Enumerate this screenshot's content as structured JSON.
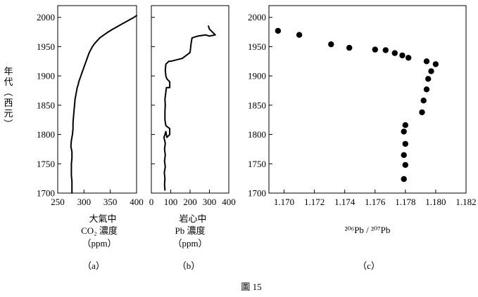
{
  "figure_caption": "圖 15",
  "y_axis_label": "年代（西元）",
  "chart_data": [
    {
      "id": "a",
      "type": "line",
      "panel_label": "（a）",
      "xlabel_lines": [
        "大氣中",
        "CO₂ 濃度",
        "（ppm）"
      ],
      "xlim": [
        250,
        400
      ],
      "xticks": [
        250,
        300,
        350,
        400
      ],
      "ylim": [
        1700,
        2020
      ],
      "yticks": [
        1700,
        1750,
        1800,
        1850,
        1900,
        1950,
        2000
      ],
      "series": [
        {
          "x": [
            277,
            277,
            277,
            276,
            276,
            276,
            277,
            277,
            275,
            276,
            278,
            279,
            279,
            280,
            281,
            282,
            283,
            284,
            285,
            286,
            287,
            289,
            290,
            292,
            294,
            296,
            298,
            300,
            302,
            304,
            306,
            308,
            310,
            313,
            316,
            320,
            325,
            330,
            338,
            346,
            355,
            365,
            375,
            385,
            395,
            400
          ],
          "y": [
            1700,
            1710,
            1720,
            1730,
            1740,
            1750,
            1760,
            1770,
            1780,
            1790,
            1800,
            1810,
            1820,
            1830,
            1840,
            1850,
            1860,
            1865,
            1870,
            1875,
            1880,
            1885,
            1890,
            1895,
            1900,
            1905,
            1910,
            1915,
            1920,
            1925,
            1930,
            1935,
            1940,
            1945,
            1950,
            1955,
            1960,
            1965,
            1970,
            1975,
            1980,
            1985,
            1990,
            1995,
            2000,
            2003
          ]
        }
      ]
    },
    {
      "id": "b",
      "type": "line",
      "panel_label": "（b）",
      "xlabel_lines": [
        "岩心中",
        "Pb 濃度",
        "（ppm）"
      ],
      "xlim": [
        0,
        400
      ],
      "xticks": [
        0,
        100,
        200,
        300,
        400
      ],
      "ylim": [
        1700,
        2020
      ],
      "yticks": [
        1700,
        1750,
        1800,
        1850,
        1900,
        1950,
        2000
      ],
      "series": [
        {
          "x": [
            70,
            68,
            70,
            67,
            72,
            68,
            72,
            68,
            72,
            65,
            70,
            75,
            80,
            95,
            95,
            75,
            70,
            70,
            72,
            70,
            74,
            78,
            95,
            95,
            80,
            75,
            72,
            75,
            90,
            100,
            160,
            200,
            205,
            210,
            240,
            280,
            300,
            330,
            300,
            295
          ],
          "y": [
            1705,
            1715,
            1725,
            1735,
            1745,
            1755,
            1765,
            1775,
            1785,
            1795,
            1800,
            1805,
            1795,
            1800,
            1810,
            1815,
            1825,
            1840,
            1850,
            1860,
            1870,
            1880,
            1880,
            1890,
            1895,
            1900,
            1910,
            1920,
            1925,
            1925,
            1930,
            1940,
            1955,
            1965,
            1968,
            1970,
            1968,
            1970,
            1980,
            1985
          ]
        }
      ]
    },
    {
      "id": "c",
      "type": "scatter",
      "panel_label": "（c）",
      "xlabel": "²⁰⁶Pb / ²⁰⁷Pb",
      "xlim": [
        1.169,
        1.182
      ],
      "xticks": [
        1.17,
        1.172,
        1.174,
        1.176,
        1.178,
        1.18,
        1.182
      ],
      "ylim": [
        1700,
        2020
      ],
      "yticks": [
        1700,
        1750,
        1800,
        1850,
        1900,
        1950,
        2000
      ],
      "series": [
        {
          "x": [
            1.1696,
            1.171,
            1.1731,
            1.1743,
            1.176,
            1.1767,
            1.1773,
            1.1778,
            1.1782,
            1.1794,
            1.18,
            1.1797,
            1.1795,
            1.1794,
            1.1792,
            1.1791,
            1.178,
            1.1779,
            1.178,
            1.1779,
            1.178,
            1.1779
          ],
          "y": [
            1977,
            1970,
            1954,
            1948,
            1945,
            1944,
            1939,
            1935,
            1931,
            1925,
            1920,
            1908,
            1895,
            1877,
            1858,
            1838,
            1816,
            1805,
            1784,
            1765,
            1748,
            1724
          ]
        }
      ]
    }
  ]
}
